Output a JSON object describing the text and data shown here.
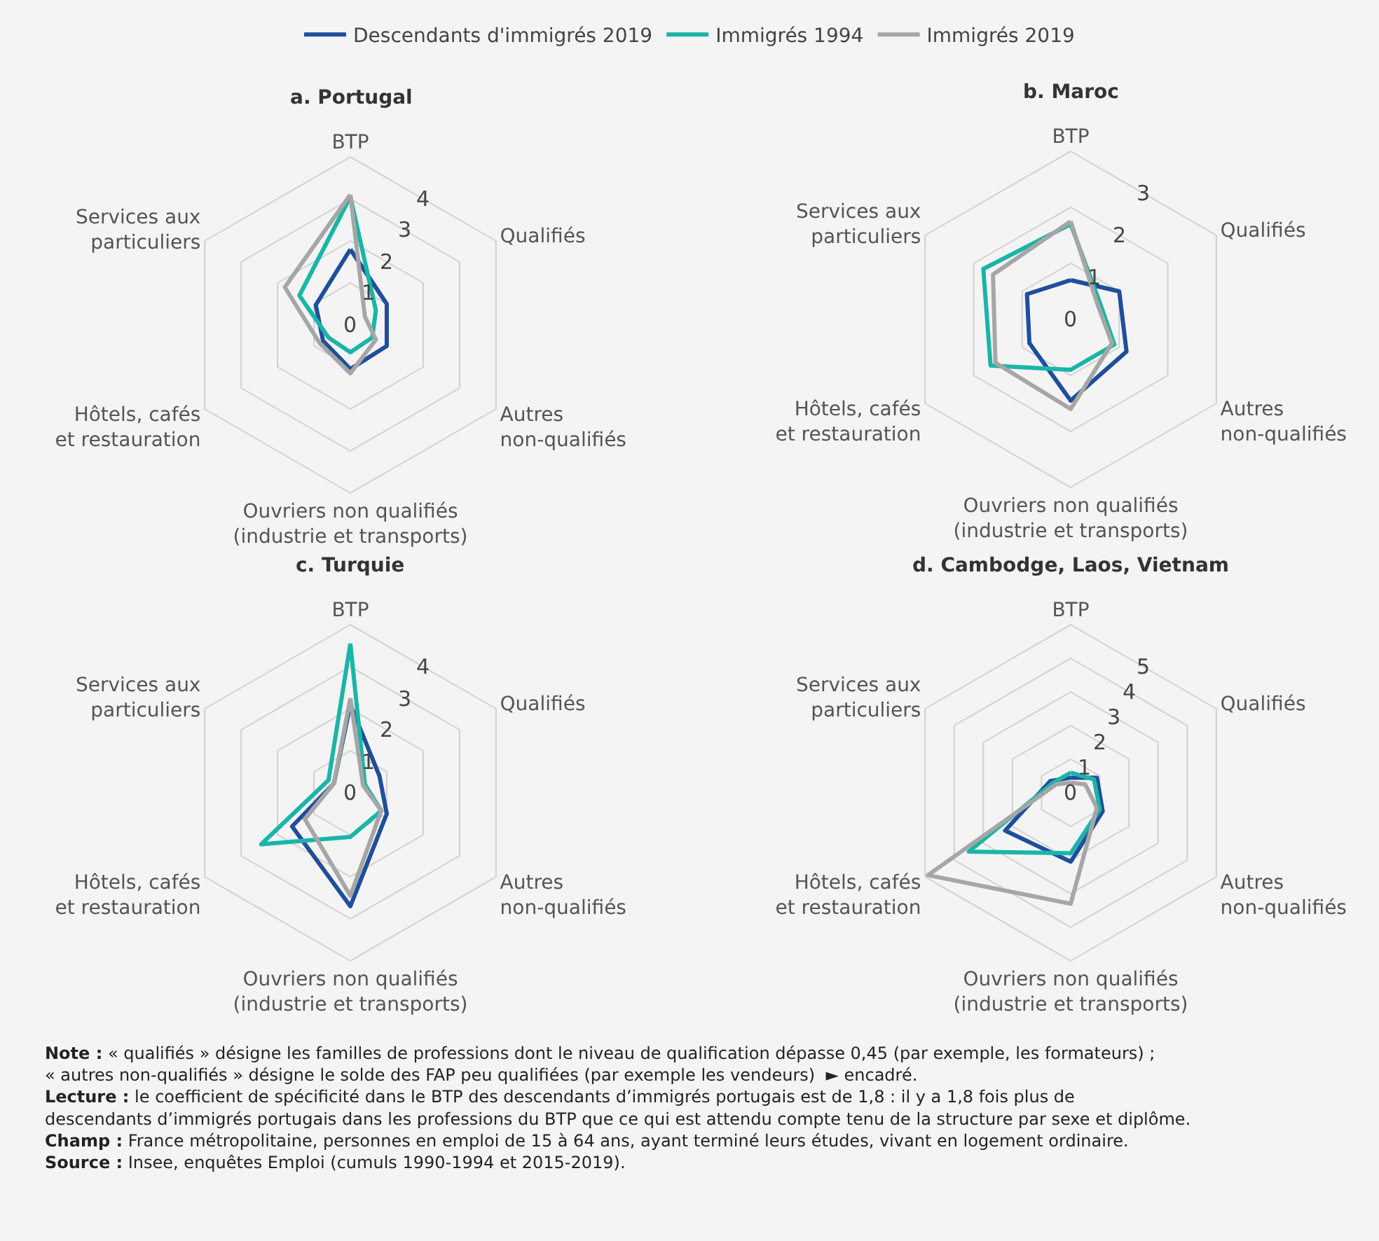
{
  "chart_data": [
    {
      "type": "radar",
      "title": "a. Portugal",
      "categories": [
        "BTP",
        "Qualifiés",
        "Autres\nnon-qualifiés",
        "Ouvriers non qualifiés\n(industrie et transports)",
        "Hôtels, cafés\net restauration",
        "Services aux\nparticuliers"
      ],
      "ylim": [
        0,
        4
      ],
      "yticks": [
        0,
        1,
        2,
        3,
        4
      ],
      "grid": true,
      "legend": "top",
      "series": [
        {
          "name": "Descendants d'immigrés 2019",
          "color": "#1f4e9c",
          "values": [
            1.8,
            1.0,
            1.0,
            1.05,
            0.75,
            0.95
          ]
        },
        {
          "name": "Immigrés 1994",
          "color": "#1ab5a8",
          "values": [
            3.05,
            0.7,
            0.6,
            0.65,
            0.6,
            1.4
          ]
        },
        {
          "name": "Immigrés 2019",
          "color": "#a6a6a6",
          "values": [
            3.1,
            0.4,
            0.7,
            1.15,
            0.85,
            1.8
          ]
        }
      ]
    },
    {
      "type": "radar",
      "title": "b. Maroc",
      "categories": [
        "BTP",
        "Qualifiés",
        "Autres\nnon-qualifiés",
        "Ouvriers non qualifiés\n(industrie et transports)",
        "Hôtels, cafés\net restauration",
        "Services aux\nparticuliers"
      ],
      "ylim": [
        0,
        3
      ],
      "yticks": [
        0,
        1,
        2,
        3
      ],
      "grid": true,
      "series": [
        {
          "color": "#1f4e9c",
          "values": [
            0.7,
            1.0,
            1.15,
            1.45,
            0.85,
            0.9
          ]
        },
        {
          "color": "#1ab5a8",
          "values": [
            1.7,
            0.6,
            0.9,
            0.9,
            1.65,
            1.8
          ]
        },
        {
          "color": "#a6a6a6",
          "values": [
            1.75,
            0.55,
            0.85,
            1.6,
            1.55,
            1.6
          ]
        }
      ]
    },
    {
      "type": "radar",
      "title": "c. Turquie",
      "categories": [
        "BTP",
        "Qualifiés",
        "Autres\nnon-qualifiés",
        "Ouvriers non qualifiés\n(industrie et transports)",
        "Hôtels, cafés\net restauration",
        "Services aux\nparticuliers"
      ],
      "ylim": [
        0,
        4
      ],
      "yticks": [
        0,
        1,
        2,
        3,
        4
      ],
      "grid": true,
      "series": [
        {
          "color": "#1f4e9c",
          "values": [
            2.1,
            0.8,
            1.0,
            2.7,
            1.6,
            0.45
          ]
        },
        {
          "color": "#1ab5a8",
          "values": [
            3.55,
            0.4,
            0.85,
            1.05,
            2.45,
            0.6
          ]
        },
        {
          "color": "#a6a6a6",
          "values": [
            2.25,
            0.35,
            0.85,
            2.45,
            1.25,
            0.45
          ]
        }
      ]
    },
    {
      "type": "radar",
      "title": "d. Cambodge, Laos, Vietnam",
      "categories": [
        "BTP",
        "Qualifiés",
        "Autres\nnon-qualifiés",
        "Ouvriers non qualifiés\n(industrie et transports)",
        "Hôtels, cafés\net restauration",
        "Services aux\nparticuliers"
      ],
      "ylim": [
        0,
        5
      ],
      "yticks": [
        0,
        1,
        2,
        3,
        4,
        5
      ],
      "grid": true,
      "series": [
        {
          "color": "#1f4e9c",
          "values": [
            0.45,
            0.9,
            1.1,
            2.05,
            2.25,
            0.7
          ]
        },
        {
          "color": "#1ab5a8",
          "values": [
            0.6,
            0.8,
            1.0,
            1.8,
            3.5,
            0.6
          ]
        },
        {
          "color": "#a6a6a6",
          "values": [
            0.3,
            0.5,
            0.9,
            3.3,
            4.9,
            0.5
          ]
        }
      ],
      "annotations": [
        "Note : « qualifiés » désigne les familles de professions dont le niveau de qualification dépasse 0,45 (par exemple, les formateurs) ; « autres non-qualifiés » désigne le solde des FAP peu qualifiées (par exemple les vendeurs)  ► encadré.",
        "Lecture : le coefficient de spécificité dans le BTP des descendants d’immigrés portugais est de 1,8 : il y a 1,8 fois plus de descendants d’immigrés portugais dans les professions du BTP que ce qui est attendu compte tenu de la structure par sexe et diplôme.",
        "Champ : France métropolitaine, personnes en emploi de 15 à 64 ans, ayant terminé leurs études, vivant en logement ordinaire.",
        "Source : Insee, enquêtes Emploi (cumuls 1990-1994 et 2015-2019)."
      ]
    }
  ]
}
